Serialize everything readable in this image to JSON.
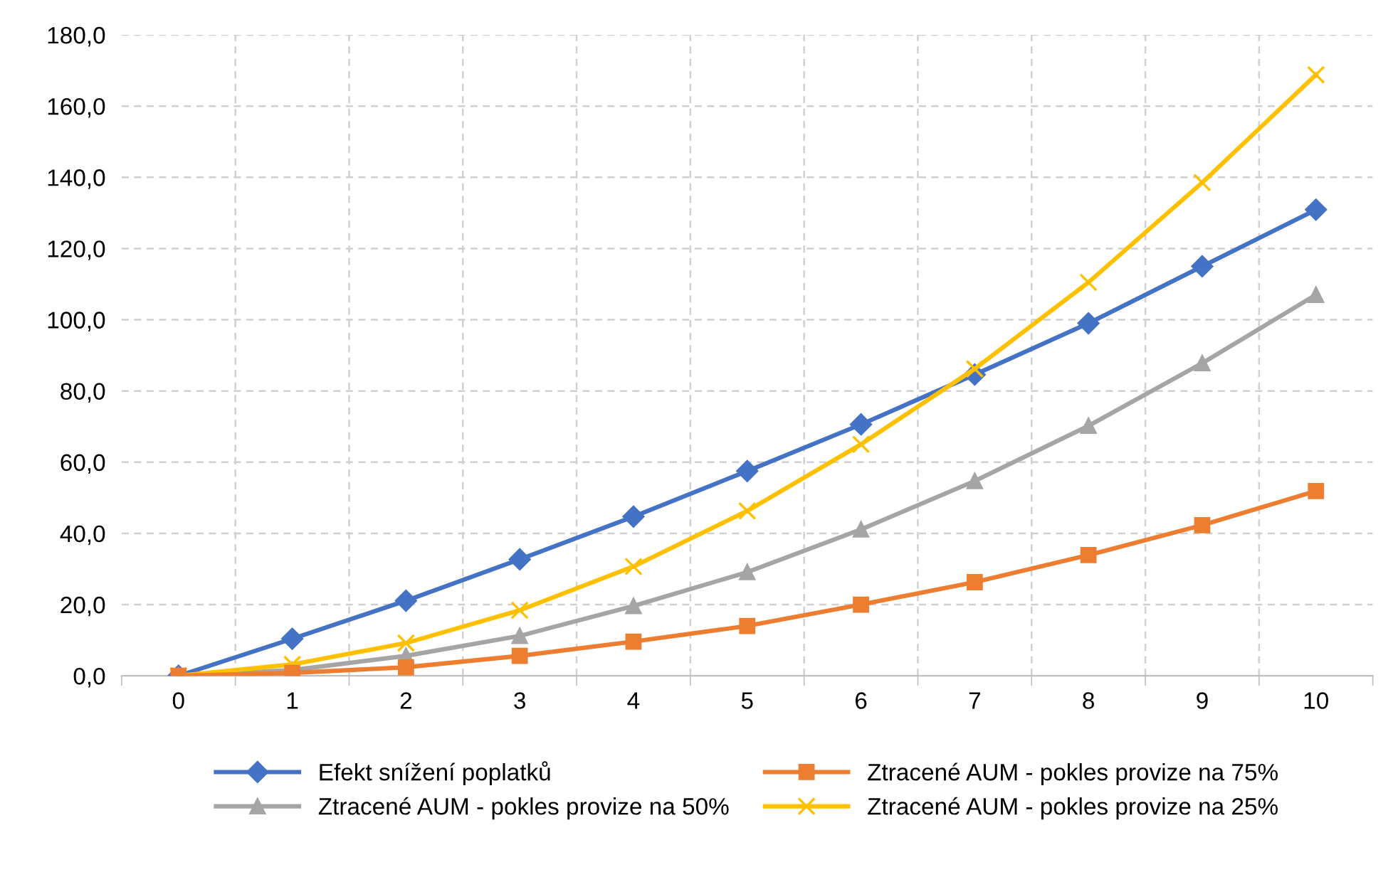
{
  "chart_data": {
    "type": "line",
    "categories": [
      "0",
      "1",
      "2",
      "3",
      "4",
      "5",
      "6",
      "7",
      "8",
      "9",
      "10"
    ],
    "series": [
      {
        "name": "Efekt snížení poplatků",
        "color": "#4472c4",
        "marker": "diamond",
        "values": [
          0,
          10.4,
          21.1,
          32.7,
          44.7,
          57.5,
          70.6,
          84.6,
          99,
          115,
          130.9
        ]
      },
      {
        "name": "Ztracené AUM - pokles provize na 75%",
        "color": "#ed7d31",
        "marker": "square",
        "values": [
          0,
          0.8,
          2.4,
          5.6,
          9.6,
          14,
          20,
          26.3,
          33.9,
          42.3,
          51.9
        ]
      },
      {
        "name": "Ztracené AUM - pokles provize na 50%",
        "color": "#a5a5a5",
        "marker": "triangle",
        "values": [
          0,
          1.6,
          5.6,
          11.2,
          19.6,
          29.1,
          41.1,
          54.7,
          70.2,
          87.8,
          107
        ]
      },
      {
        "name": "Ztracené AUM - pokles provize na 25%",
        "color": "#ffc000",
        "marker": "cross",
        "values": [
          0,
          3.2,
          9.2,
          18.4,
          30.7,
          46.3,
          65,
          86.2,
          110.5,
          138.5,
          168.8
        ]
      }
    ],
    "ylim": [
      0,
      180
    ],
    "yticks": [
      {
        "value": 0,
        "label": "0,0"
      },
      {
        "value": 20,
        "label": "20,0"
      },
      {
        "value": 40,
        "label": "40,0"
      },
      {
        "value": 60,
        "label": "60,0"
      },
      {
        "value": 80,
        "label": "80,0"
      },
      {
        "value": 100,
        "label": "100,0"
      },
      {
        "value": 120,
        "label": "120,0"
      },
      {
        "value": 140,
        "label": "140,0"
      },
      {
        "value": 160,
        "label": "160,0"
      },
      {
        "value": 180,
        "label": "180,0"
      }
    ],
    "grid": true,
    "legend": "bottom",
    "line_style": "solid"
  }
}
